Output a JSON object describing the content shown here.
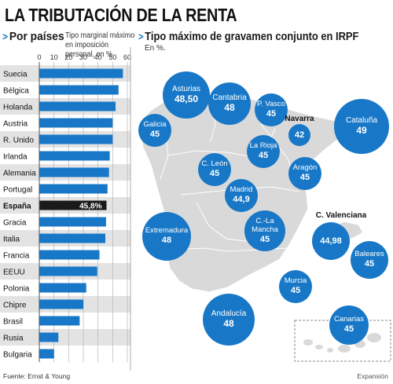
{
  "title": "LA TRIBUTACIÓN DE LA RENTA",
  "left": {
    "heading": "Por países",
    "subheading": "Tipo marginal máximo en imposición personal, en %."
  },
  "right": {
    "heading": "Tipo máximo de gravamen conjunto en IRPF",
    "subheading": "En %."
  },
  "source": "Fuente: Ernst & Young",
  "credit": "Expansión",
  "colors": {
    "bar": "#1878c7",
    "highlight": "#1a1a1a",
    "stripe": "#e3e3e3",
    "map_land": "#d9d9d9"
  },
  "chart_data": [
    {
      "type": "bar",
      "orientation": "horizontal",
      "categories": [
        "Suecia",
        "Bélgica",
        "Holanda",
        "Austria",
        "R. Unido",
        "Irlanda",
        "Alemania",
        "Portugal",
        "España",
        "Gracia",
        "Italia",
        "Francia",
        "EEUU",
        "Polonia",
        "Chipre",
        "Brasil",
        "Rusia",
        "Bulgaria"
      ],
      "values": [
        57,
        54,
        52,
        50,
        50,
        48,
        47.5,
        46.5,
        45.8,
        45.5,
        45,
        41,
        39.5,
        32,
        30,
        27.5,
        13,
        10
      ],
      "data_labels": {
        "España": "45,8%"
      },
      "highlight": "España",
      "xlim": [
        0,
        60
      ],
      "xticks": [
        0,
        10,
        20,
        30,
        40,
        50,
        60
      ],
      "grid": true
    },
    {
      "type": "bubble-map",
      "regions": [
        {
          "name": "Asturias",
          "value": "48,50",
          "bubble": true
        },
        {
          "name": "Cantabria",
          "value": "48",
          "bubble": true
        },
        {
          "name": "P. Vasco",
          "value": "45",
          "bubble": true
        },
        {
          "name": "Navarra",
          "value": "42",
          "bubble": true,
          "label_outside": true
        },
        {
          "name": "Cataluña",
          "value": "49",
          "bubble": true
        },
        {
          "name": "Galicia",
          "value": "45",
          "bubble": true
        },
        {
          "name": "La Rioja",
          "value": "45",
          "bubble": true
        },
        {
          "name": "C. León",
          "value": "45",
          "bubble": true
        },
        {
          "name": "Aragón",
          "value": "45",
          "bubble": true
        },
        {
          "name": "Madrid",
          "value": "44,9",
          "bubble": true
        },
        {
          "name": "C. Valenciana",
          "value": "44,98",
          "bubble": true,
          "label_outside": true
        },
        {
          "name": "Extremadura",
          "value": "48",
          "bubble": true
        },
        {
          "name": "C.-La Mancha",
          "value": "45",
          "bubble": true
        },
        {
          "name": "Baleares",
          "value": "45",
          "bubble": true
        },
        {
          "name": "Murcia",
          "value": "45",
          "bubble": true
        },
        {
          "name": "Andalucía",
          "value": "48",
          "bubble": true
        },
        {
          "name": "Canarias",
          "value": "45",
          "bubble": true
        }
      ]
    }
  ]
}
